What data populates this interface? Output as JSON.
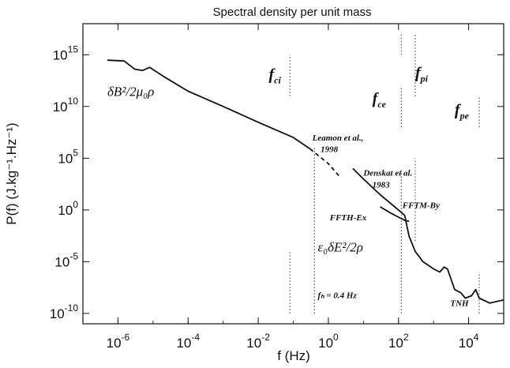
{
  "chart_data": {
    "type": "line",
    "title": "Spectral density per unit mass",
    "xlabel": "f (Hz)",
    "ylabel": "P(f)   (J.kg⁻¹.Hz⁻¹)",
    "x_scale": "log",
    "y_scale": "log",
    "xlim": [
      1e-07,
      100000.0
    ],
    "ylim": [
      1e-11,
      1e+18
    ],
    "x_ticks": [
      {
        "value": 1e-06,
        "base": "10",
        "exp": "-6"
      },
      {
        "value": 0.0001,
        "base": "10",
        "exp": "-4"
      },
      {
        "value": 0.01,
        "base": "10",
        "exp": "-2"
      },
      {
        "value": 1,
        "base": "10",
        "exp": "0"
      },
      {
        "value": 100.0,
        "base": "10",
        "exp": "2"
      },
      {
        "value": 10000.0,
        "base": "10",
        "exp": "4"
      }
    ],
    "y_ticks": [
      {
        "value": 1e-10,
        "base": "10",
        "exp": "-10"
      },
      {
        "value": 1e-05,
        "base": "10",
        "exp": "-5"
      },
      {
        "value": 1,
        "base": "10",
        "exp": "0"
      },
      {
        "value": 100000.0,
        "base": "10",
        "exp": "5"
      },
      {
        "value": 10000000000.0,
        "base": "10",
        "exp": "10"
      },
      {
        "value": 1000000000000000.0,
        "base": "10",
        "exp": "15"
      }
    ],
    "series": [
      {
        "style": "solid",
        "points": [
          [
            5e-07,
            300000000000000.0
          ],
          [
            1.5e-06,
            250000000000000.0
          ],
          [
            3e-06,
            40000000000000.0
          ],
          [
            5e-06,
            30000000000000.0
          ],
          [
            8e-06,
            60000000000000.0
          ],
          [
            2e-05,
            8000000000000.0
          ],
          [
            0.0001,
            300000000000.0
          ],
          [
            0.001,
            10000000000.0
          ],
          [
            0.01,
            300000000.0
          ],
          [
            0.1,
            10000000.0
          ],
          [
            0.3,
            800000.0
          ]
        ]
      },
      {
        "style": "dashed",
        "points": [
          [
            0.3,
            800000.0
          ],
          [
            1,
            30000.0
          ],
          [
            2,
            2000.0
          ]
        ]
      },
      {
        "style": "solid",
        "points": [
          [
            5,
            10000.0
          ],
          [
            10.0,
            1000.0
          ],
          [
            30.0,
            30.0
          ],
          [
            100.0,
            1
          ],
          [
            150.0,
            0.3
          ]
        ]
      },
      {
        "style": "solid",
        "points": [
          [
            30.0,
            2
          ],
          [
            60.0,
            0.5
          ],
          [
            100.0,
            0.2
          ],
          [
            150.0,
            0.1
          ],
          [
            200.0,
            0.08
          ]
        ]
      },
      {
        "style": "solid",
        "points": [
          [
            150.0,
            0.3
          ],
          [
            200.0,
            0.003
          ],
          [
            300.0,
            0.0001
          ],
          [
            500.0,
            1e-05
          ],
          [
            1000.0,
            2e-06
          ],
          [
            1500.0,
            1e-06
          ],
          [
            2000.0,
            3e-06
          ],
          [
            2500.0,
            2e-06
          ],
          [
            4000.0,
            2e-08
          ],
          [
            6000.0,
            1e-08
          ],
          [
            8000.0,
            3e-09
          ],
          [
            12000.0,
            5e-09
          ],
          [
            16000.0,
            2e-08
          ],
          [
            20000.0,
            3e-09
          ],
          [
            40000.0,
            1e-09
          ],
          [
            100000.0,
            2e-09
          ]
        ]
      }
    ],
    "vertical_markers": [
      {
        "x": 0.08,
        "y_from": 100000000000.0,
        "y_to": 1000000000000000.0
      },
      {
        "x": 0.08,
        "y_from": 1e-10,
        "y_to": 0.0001
      },
      {
        "x": 0.4,
        "y_from": 1e-10,
        "y_to": 1000000.0
      },
      {
        "x": 120.0,
        "y_from": 1e-10,
        "y_to": 10000.0
      },
      {
        "x": 120.0,
        "y_from": 100000000.0,
        "y_to": 1000000000000.0
      },
      {
        "x": 120.0,
        "y_from": 1000000000000000.0,
        "y_to": 1e+17
      },
      {
        "x": 300.0,
        "y_from": 0.001,
        "y_to": 100000.0
      },
      {
        "x": 300.0,
        "y_from": 100000000000.0,
        "y_to": 1e+17
      },
      {
        "x": 20000.0,
        "y_from": 1e-10,
        "y_to": 1e-06
      },
      {
        "x": 20000.0,
        "y_from": 100000000.0,
        "y_to": 100000000000.0
      }
    ],
    "annotations": [
      {
        "text": "f",
        "sub": "ci",
        "x": 0.02,
        "y": 4000000000000.0
      },
      {
        "text": "f",
        "sub": "ce",
        "x": 18.0,
        "y": 20000000000.0
      },
      {
        "text": "f",
        "sub": "pi",
        "x": 300.0,
        "y": 6000000000000.0
      },
      {
        "text": "f",
        "sub": "pe",
        "x": 4000.0,
        "y": 1500000000.0
      },
      {
        "text": "δB²/2μ₀ρ",
        "x": 5e-07,
        "y": 100000000000.0
      },
      {
        "text": "Leamon et al.,",
        "x": 0.35,
        "y": 5000000.0
      },
      {
        "text": "1998",
        "x": 0.6,
        "y": 400000.0
      },
      {
        "text": "Denskat et al.",
        "x": 10.0,
        "y": 2000.0
      },
      {
        "text": "1983",
        "x": 18.0,
        "y": 150.0
      },
      {
        "text": "FFTM-By",
        "x": 130.0,
        "y": 1.5
      },
      {
        "text": "FFTH-Ex",
        "x": 1.1,
        "y": 0.1
      },
      {
        "text": "ε₀δE²/2ρ",
        "x": 0.5,
        "y": 0.0001
      },
      {
        "text": "fₕ = 0.4 Hz",
        "x": 0.5,
        "y": 3e-09
      },
      {
        "text": "TNH",
        "x": 3000.0,
        "y": 5e-10
      }
    ]
  },
  "colors": {
    "line": "#111111",
    "frame": "#111111",
    "background": "#ffffff"
  }
}
